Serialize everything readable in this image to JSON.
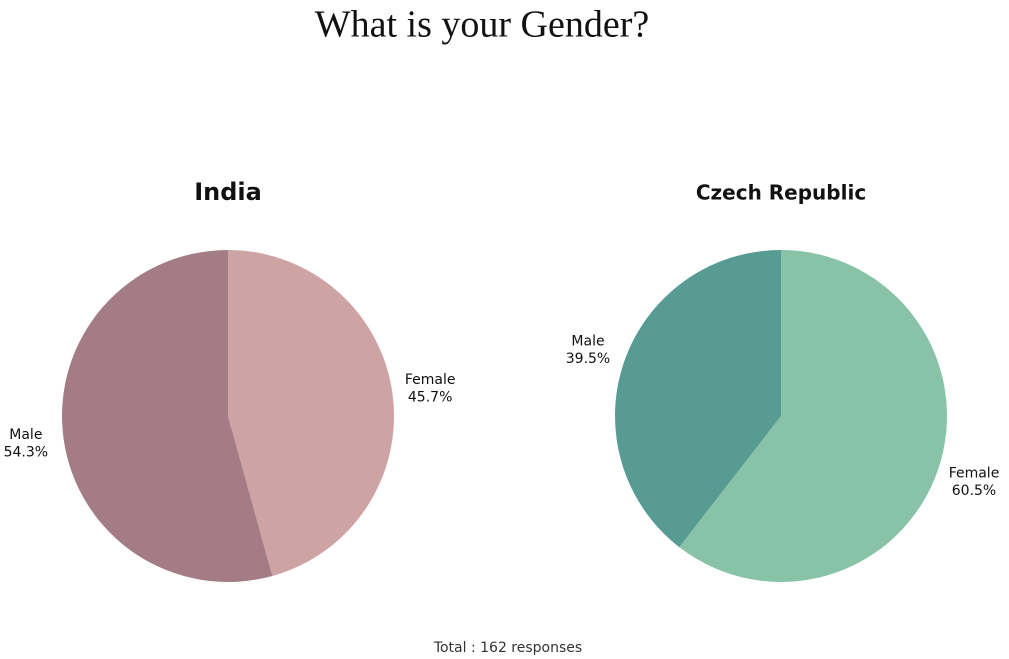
{
  "title": "What is your Gender?",
  "footer": "Total : 162 responses",
  "chart_data": [
    {
      "type": "pie",
      "title": "India",
      "categories": [
        "Female",
        "Male"
      ],
      "values": [
        45.7,
        54.3
      ],
      "value_labels": [
        "45.7%",
        "54.3%"
      ],
      "colors": [
        "#cda4a3",
        "#a37c86"
      ]
    },
    {
      "type": "pie",
      "title": "Czech Republic",
      "categories": [
        "Female",
        "Male"
      ],
      "values": [
        60.5,
        39.5
      ],
      "value_labels": [
        "60.5%",
        "39.5%"
      ],
      "colors": [
        "#88c3a7",
        "#579b93"
      ]
    }
  ]
}
